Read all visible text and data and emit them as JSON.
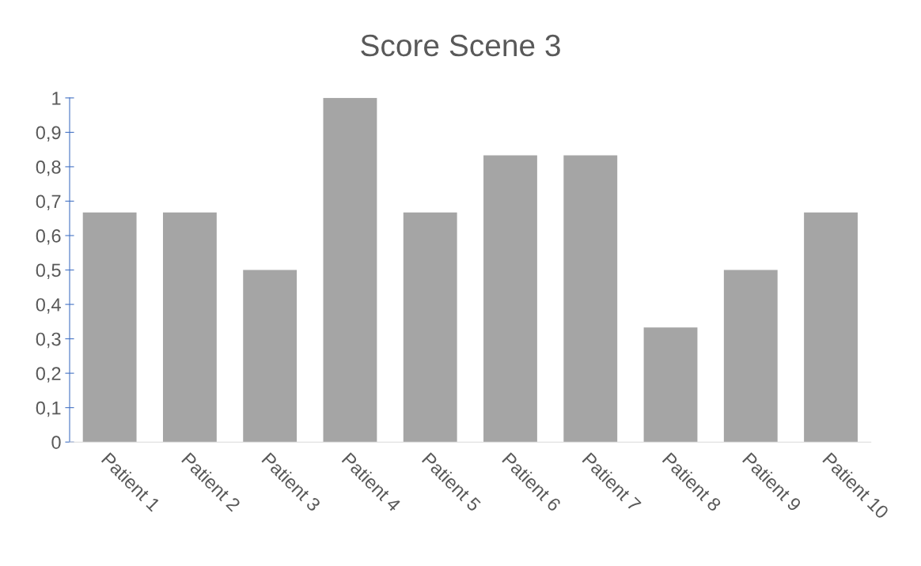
{
  "chart_data": {
    "type": "bar",
    "title": "Score Scene 3",
    "categories": [
      "Patient 1",
      "Patient 2",
      "Patient 3",
      "Patient 4",
      "Patient 5",
      "Patient 6",
      "Patient 7",
      "Patient 8",
      "Patient 9",
      "Patient 10"
    ],
    "values": [
      0.667,
      0.667,
      0.5,
      1,
      0.667,
      0.833,
      0.833,
      0.333,
      0.5,
      0.667
    ],
    "color": "#a5a5a5",
    "ylim": [
      0,
      1
    ],
    "yticks": [
      0,
      {
        "value": 0.1,
        "label": "0,1"
      },
      {
        "value": 0.2,
        "label": "0,2"
      },
      {
        "value": 0.3,
        "label": "0,3"
      },
      {
        "value": 0.4,
        "label": "0,4"
      },
      {
        "value": 0.5,
        "label": "0,5"
      },
      {
        "value": 0.6,
        "label": "0,6"
      },
      {
        "value": 0.7,
        "label": "0,7"
      },
      {
        "value": 0.8,
        "label": "0,8"
      },
      {
        "value": 0.9,
        "label": "0,9"
      },
      1
    ],
    "grid": false,
    "legend": false
  }
}
